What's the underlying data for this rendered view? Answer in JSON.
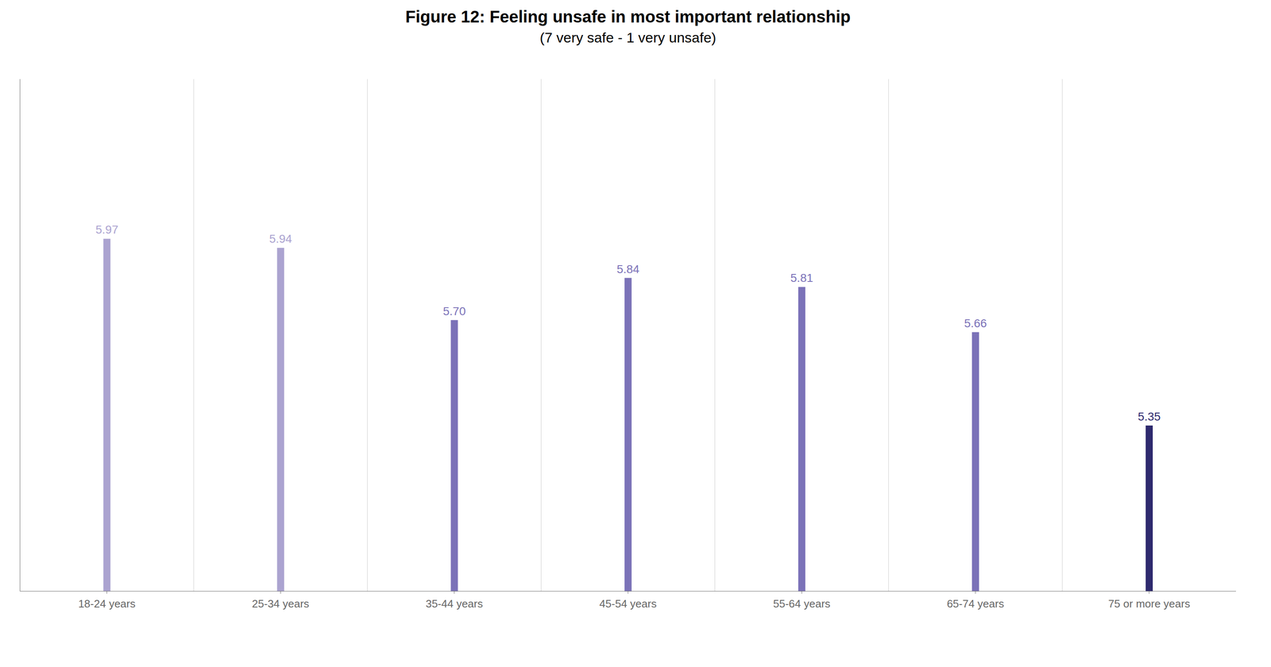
{
  "chart_data": {
    "type": "bar",
    "title": "Figure 12: Feeling unsafe in most important relationship",
    "subtitle": "(7 very safe - 1 very unsafe)",
    "categories": [
      "18-24 years",
      "25-34 years",
      "35-44 years",
      "45-54 years",
      "55-64 years",
      "65-74 years",
      "75 or more years"
    ],
    "values": [
      5.97,
      5.94,
      5.7,
      5.84,
      5.81,
      5.66,
      5.35
    ],
    "value_labels": [
      "5.97",
      "5.94",
      "5.70",
      "5.84",
      "5.81",
      "5.66",
      "5.35"
    ],
    "colors": [
      "#aba3d0",
      "#aba3d0",
      "#7b72b8",
      "#7b72b8",
      "#7b72b8",
      "#7b72b8",
      "#2e2a6e"
    ],
    "ylim": [
      4.8,
      6.5
    ],
    "grid": true,
    "data_labels": true,
    "tick_labels": "x"
  }
}
